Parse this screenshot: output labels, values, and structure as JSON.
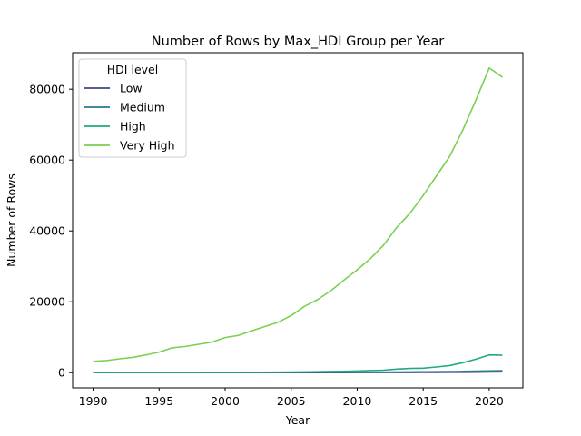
{
  "chart_data": {
    "type": "line",
    "title": "Number of Rows by Max_HDI Group per Year",
    "xlabel": "Year",
    "ylabel": "Number of Rows",
    "xlim": [
      1988.45,
      2022.55
    ],
    "ylim": [
      -4300,
      90300
    ],
    "x_ticks": [
      1990,
      1995,
      2000,
      2005,
      2010,
      2015,
      2020
    ],
    "y_ticks": [
      0,
      20000,
      40000,
      60000,
      80000
    ],
    "x_tick_labels": [
      "1990",
      "1995",
      "2000",
      "2005",
      "2010",
      "2015",
      "2020"
    ],
    "y_tick_labels": [
      "0",
      "20000",
      "40000",
      "60000",
      "80000"
    ],
    "grid": false,
    "legend": {
      "title": "HDI level",
      "placement": "top-left"
    },
    "x": [
      1990,
      1991,
      1992,
      1993,
      1994,
      1995,
      1996,
      1997,
      1998,
      1999,
      2000,
      2001,
      2002,
      2003,
      2004,
      2005,
      2006,
      2007,
      2008,
      2009,
      2010,
      2011,
      2012,
      2013,
      2014,
      2015,
      2016,
      2017,
      2018,
      2019,
      2020,
      2021
    ],
    "series": [
      {
        "name": "Low",
        "color": "#414487",
        "values": [
          5,
          5,
          5,
          5,
          5,
          5,
          5,
          5,
          5,
          5,
          10,
          10,
          10,
          10,
          10,
          15,
          15,
          15,
          20,
          20,
          25,
          30,
          35,
          40,
          50,
          60,
          70,
          90,
          110,
          150,
          200,
          220
        ]
      },
      {
        "name": "Medium",
        "color": "#2a788e",
        "values": [
          10,
          10,
          10,
          10,
          10,
          10,
          10,
          10,
          15,
          15,
          20,
          20,
          25,
          30,
          35,
          40,
          50,
          60,
          70,
          80,
          100,
          120,
          150,
          180,
          200,
          230,
          260,
          300,
          350,
          420,
          500,
          550
        ]
      },
      {
        "name": "High",
        "color": "#22a884",
        "values": [
          50,
          50,
          60,
          60,
          60,
          70,
          70,
          80,
          80,
          90,
          100,
          100,
          110,
          120,
          150,
          180,
          220,
          260,
          320,
          380,
          450,
          600,
          700,
          1000,
          1200,
          1250,
          1600,
          2000,
          2800,
          3800,
          5000,
          4900
        ]
      },
      {
        "name": "Very High",
        "color": "#7ad151",
        "values": [
          3200,
          3400,
          3900,
          4300,
          5000,
          5800,
          7000,
          7400,
          8000,
          8600,
          9900,
          10500,
          11800,
          13000,
          14200,
          16100,
          18700,
          20600,
          23100,
          26100,
          29000,
          32200,
          36000,
          41000,
          45000,
          50000,
          55500,
          61000,
          68500,
          77000,
          86000,
          83400
        ]
      }
    ]
  }
}
